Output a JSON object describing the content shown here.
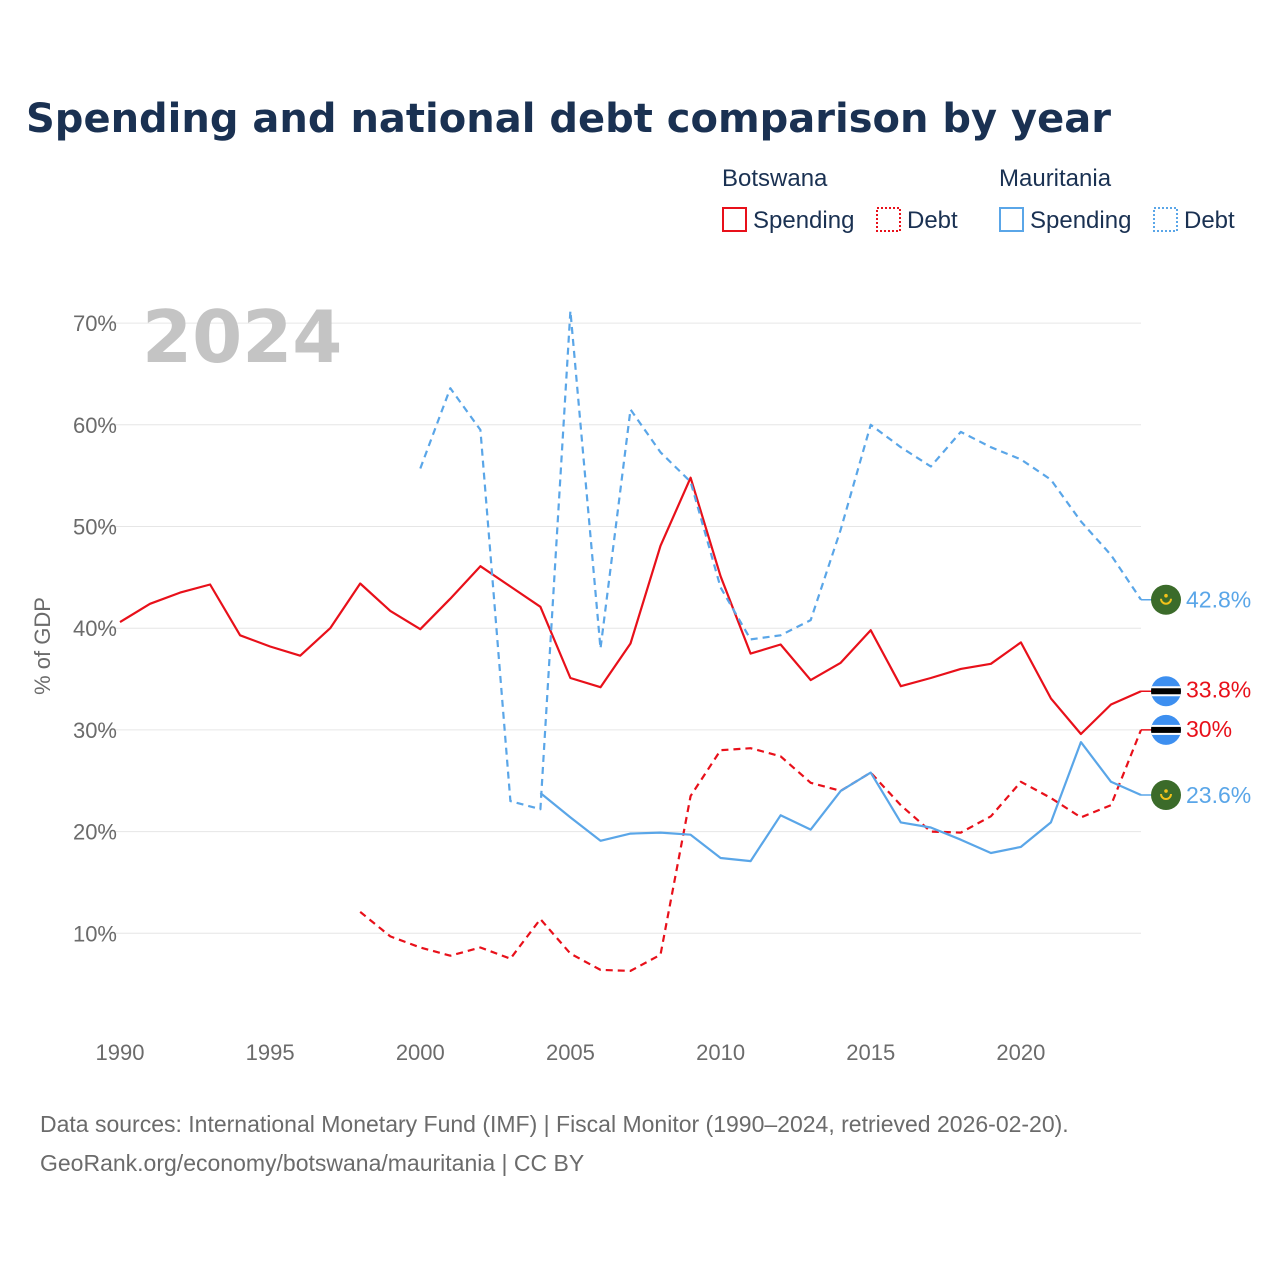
{
  "chart_data": {
    "type": "line",
    "title": "Spending and national debt comparison by year",
    "year_label": "2024",
    "ylabel": "% of GDP",
    "xlabel": "",
    "xlim": [
      1990,
      2024
    ],
    "ylim": [
      0,
      72
    ],
    "x_ticks": [
      1990,
      1995,
      2000,
      2005,
      2010,
      2015,
      2020
    ],
    "y_ticks": [
      10,
      20,
      30,
      40,
      50,
      60,
      70
    ],
    "y_tick_labels": [
      "10%",
      "20%",
      "30%",
      "40%",
      "50%",
      "60%",
      "70%"
    ],
    "legend": {
      "groups": [
        {
          "name": "Botswana",
          "items": [
            {
              "label": "Spending",
              "style": "solid"
            },
            {
              "label": "Debt",
              "style": "dotted"
            }
          ],
          "color": "#e8101a"
        },
        {
          "name": "Mauritania",
          "items": [
            {
              "label": "Spending",
              "style": "solid"
            },
            {
              "label": "Debt",
              "style": "dotted"
            }
          ],
          "color": "#5aa6e8"
        }
      ]
    },
    "series": [
      {
        "name": "Botswana Spending",
        "country": "Botswana",
        "color": "#e8101a",
        "dash": "solid",
        "flag": "botswana",
        "end_label": "33.8%",
        "x": [
          1990,
          1991,
          1992,
          1993,
          1994,
          1995,
          1996,
          1997,
          1998,
          1999,
          2000,
          2001,
          2002,
          2003,
          2004,
          2005,
          2006,
          2007,
          2008,
          2009,
          2010,
          2011,
          2012,
          2013,
          2014,
          2015,
          2016,
          2017,
          2018,
          2019,
          2020,
          2021,
          2022,
          2023,
          2024
        ],
        "values": [
          40.6,
          42.4,
          43.5,
          44.3,
          39.3,
          38.2,
          37.3,
          40.0,
          44.4,
          41.7,
          39.9,
          42.9,
          46.1,
          44.1,
          42.1,
          35.1,
          34.2,
          38.5,
          48.1,
          54.8,
          45.1,
          37.5,
          38.4,
          34.9,
          36.6,
          39.8,
          34.3,
          35.1,
          36.0,
          36.5,
          38.6,
          33.1,
          29.6,
          32.5,
          33.8
        ]
      },
      {
        "name": "Botswana Debt",
        "country": "Botswana",
        "color": "#e8101a",
        "dash": "dashed",
        "flag": "botswana",
        "end_label": "30%",
        "x": [
          1998,
          1999,
          2000,
          2001,
          2002,
          2003,
          2004,
          2005,
          2006,
          2007,
          2008,
          2009,
          2010,
          2011,
          2012,
          2013,
          2014,
          2015,
          2016,
          2017,
          2018,
          2019,
          2020,
          2021,
          2022,
          2023,
          2024
        ],
        "values": [
          12.1,
          9.7,
          8.6,
          7.8,
          8.6,
          7.5,
          11.4,
          8.0,
          6.4,
          6.3,
          7.9,
          23.5,
          28.0,
          28.2,
          27.4,
          24.8,
          24.0,
          25.8,
          22.6,
          20.0,
          19.9,
          21.5,
          24.9,
          23.3,
          21.4,
          22.6,
          30.0
        ]
      },
      {
        "name": "Mauritania Spending",
        "country": "Mauritania",
        "color": "#5aa6e8",
        "dash": "solid",
        "flag": "mauritania",
        "end_label": "23.6%",
        "x": [
          2004,
          2005,
          2006,
          2007,
          2008,
          2009,
          2010,
          2011,
          2012,
          2013,
          2014,
          2015,
          2016,
          2017,
          2018,
          2019,
          2020,
          2021,
          2022,
          2023,
          2024
        ],
        "values": [
          23.8,
          21.4,
          19.1,
          19.8,
          19.9,
          19.7,
          17.4,
          17.1,
          21.6,
          20.2,
          24.0,
          25.8,
          20.9,
          20.4,
          19.2,
          17.9,
          18.5,
          20.9,
          28.8,
          24.9,
          23.6
        ]
      },
      {
        "name": "Mauritania Debt",
        "country": "Mauritania",
        "color": "#5aa6e8",
        "dash": "dashed",
        "flag": "mauritania",
        "end_label": "42.8%",
        "x": [
          2000,
          2001,
          2002,
          2003,
          2004,
          2005,
          2006,
          2007,
          2008,
          2009,
          2010,
          2011,
          2012,
          2013,
          2014,
          2015,
          2016,
          2017,
          2018,
          2019,
          2020,
          2021,
          2022,
          2023,
          2024
        ],
        "values": [
          55.7,
          63.6,
          59.5,
          23.0,
          22.2,
          71.2,
          38.0,
          61.5,
          57.3,
          54.4,
          44.0,
          38.9,
          39.3,
          40.8,
          49.7,
          60.0,
          57.8,
          55.9,
          59.3,
          57.8,
          56.6,
          54.6,
          50.5,
          47.2,
          42.8
        ]
      }
    ]
  },
  "source": {
    "line1": "Data sources: International Monetary Fund (IMF) | Fiscal Monitor (1990–2024, retrieved 2026-02-20).",
    "line2": "GeoRank.org/economy/botswana/mauritania | CC BY"
  }
}
